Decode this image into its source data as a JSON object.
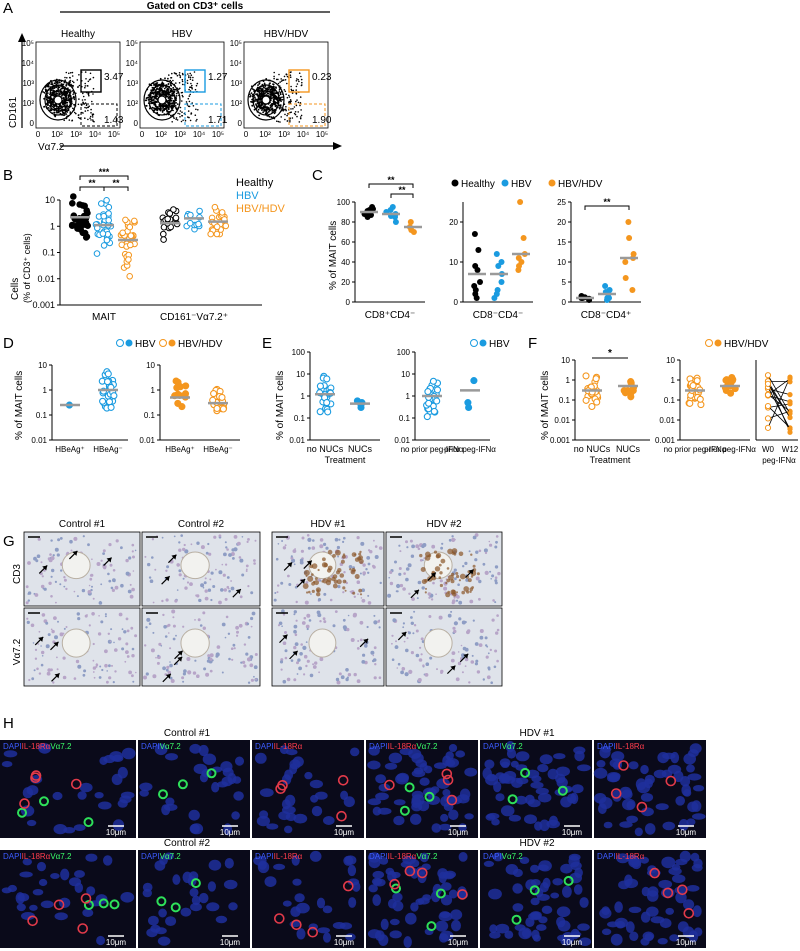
{
  "colors": {
    "healthy": "#000000",
    "hbv": "#1a9be0",
    "hbvhdv": "#f4961e",
    "median": "#9a9a9a",
    "ihc_bg": "#d9dde4",
    "if_bg": "#0a0a1a"
  },
  "panelA": {
    "letter": "A",
    "header": "Gated on CD3⁺ cells",
    "ylabel": "CD161",
    "xlabel": "Vα7.2",
    "plots": [
      {
        "title": "Healthy",
        "top_pct": "3.47",
        "bottom_pct": "1.43",
        "gate_color": "#000000"
      },
      {
        "title": "HBV",
        "top_pct": "1.27",
        "bottom_pct": "1.71",
        "gate_color": "#1a9be0"
      },
      {
        "title": "HBV/HDV",
        "top_pct": "0.23",
        "bottom_pct": "1.90",
        "gate_color": "#f4961e"
      }
    ],
    "ticks": [
      "0",
      "10²",
      "10³",
      "10⁴",
      "10⁵"
    ]
  },
  "panelB": {
    "letter": "B",
    "ylabel": "Cells",
    "ylabel2": "(% of CD3⁺ cells)",
    "yticks": [
      "10",
      "1",
      "0.1",
      "0.01",
      "0.001"
    ],
    "categories": [
      "MAIT",
      "CD161⁻Vα7.2⁺"
    ],
    "legend": [
      "Healthy",
      "HBV",
      "HBV/HDV"
    ],
    "sig": [
      "***",
      "**",
      "**"
    ]
  },
  "panelC": {
    "letter": "C",
    "ylabel": "% of MAIT cells",
    "legend": [
      "Healthy",
      "HBV",
      "HBV/HDV"
    ],
    "subplots": [
      {
        "xlabel": "CD8⁺CD4⁻",
        "yticks": [
          "100",
          "80",
          "60",
          "40",
          "20",
          "0"
        ],
        "sig": [
          "**",
          "**"
        ]
      },
      {
        "xlabel": "CD8⁻CD4⁻",
        "yticks": [
          "20",
          "10",
          "0"
        ],
        "sig": []
      },
      {
        "xlabel": "CD8⁻CD4⁺",
        "yticks": [
          "25",
          "20",
          "15",
          "10",
          "5",
          "0"
        ],
        "sig": [
          "**"
        ]
      }
    ]
  },
  "panelD": {
    "letter": "D",
    "ylabel": "% of MAIT cells",
    "legend": [
      "HBV",
      "HBV/HDV"
    ],
    "yticks": [
      "10",
      "1",
      "0.1",
      "0.01"
    ],
    "subplots": [
      {
        "cats": [
          "HBeAg⁺",
          "HBeAg⁻"
        ]
      },
      {
        "cats": [
          "HBeAg⁺",
          "HBeAg⁻"
        ]
      }
    ]
  },
  "panelE": {
    "letter": "E",
    "ylabel": "% of MAIT cells",
    "legend": [
      "HBV"
    ],
    "yticks": [
      "100",
      "10",
      "1",
      "0.1",
      "0.01"
    ],
    "subplots": [
      {
        "cats": [
          "no NUCs",
          "NUCs"
        ],
        "xlabel": "Treatment"
      },
      {
        "cats": [
          "no prior peg-IFNα",
          "prior peg-IFNα"
        ],
        "xlabel": ""
      }
    ]
  },
  "panelF": {
    "letter": "F",
    "ylabel": "% of MAIT cells",
    "legend": [
      "HBV/HDV"
    ],
    "yticks": [
      "10",
      "1",
      "0.1",
      "0.01",
      "0.001"
    ],
    "subplots": [
      {
        "cats": [
          "no NUCs",
          "NUCs"
        ],
        "xlabel": "Treatment",
        "sig": "*"
      },
      {
        "cats": [
          "no prior peg-IFNα",
          "prior peg-IFNα"
        ],
        "xlabel": ""
      },
      {
        "cats": [
          "W0",
          "W12"
        ],
        "xlabel": "peg-IFNα"
      }
    ]
  },
  "panelG": {
    "letter": "G",
    "titles": [
      "Control #1",
      "Control #2",
      "HDV #1",
      "HDV #2"
    ],
    "rows": [
      "CD3",
      "Vα7.2"
    ]
  },
  "panelH": {
    "letter": "H",
    "titles": [
      "Control #1",
      "HDV #1",
      "Control #2",
      "HDV #2"
    ],
    "channel_labels": {
      "merge_dapi": "DAPI",
      "merge_il": "IL-18Rα",
      "merge_va": "Vα7.2"
    },
    "scale": "10μm"
  }
}
